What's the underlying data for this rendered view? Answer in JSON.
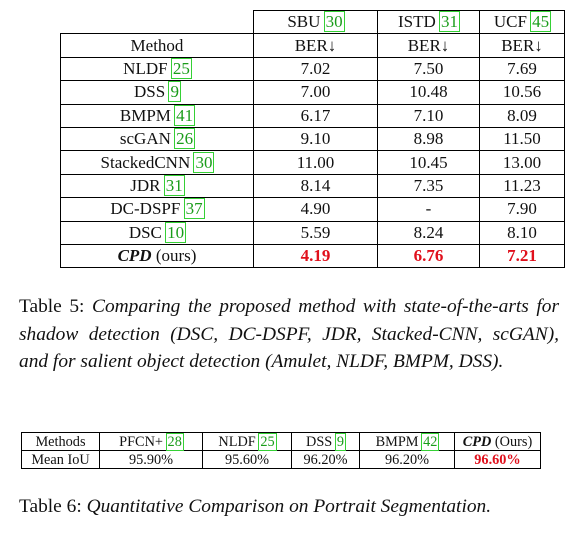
{
  "table5": {
    "datasets": [
      {
        "name": "SBU",
        "cite": "30"
      },
      {
        "name": "ISTD",
        "cite": "31"
      },
      {
        "name": "UCF",
        "cite": "45"
      }
    ],
    "method_header": "Method",
    "metric": "BER↓",
    "rows": [
      {
        "method": "NLDF",
        "cite": "25",
        "values": [
          "7.02",
          "7.50",
          "7.69"
        ]
      },
      {
        "method": "DSS",
        "cite": "9",
        "values": [
          "7.00",
          "10.48",
          "10.56"
        ]
      },
      {
        "method": "BMPM",
        "cite": "41",
        "values": [
          "6.17",
          "7.10",
          "8.09"
        ]
      },
      {
        "method": "scGAN",
        "cite": "26",
        "values": [
          "9.10",
          "8.98",
          "11.50"
        ]
      },
      {
        "method": "StackedCNN",
        "cite": "30",
        "values": [
          "11.00",
          "10.45",
          "13.00"
        ]
      },
      {
        "method": "JDR",
        "cite": "31",
        "values": [
          "8.14",
          "7.35",
          "11.23"
        ]
      },
      {
        "method": "DC-DSPF",
        "cite": "37",
        "values": [
          "4.90",
          "-",
          "7.90"
        ]
      },
      {
        "method": "DSC",
        "cite": "10",
        "values": [
          "5.59",
          "8.24",
          "8.10"
        ]
      }
    ],
    "ours": {
      "method": "CPD",
      "suffix": "(ours)",
      "values": [
        "4.19",
        "6.76",
        "7.21"
      ],
      "highlight_color": "#e0101c"
    },
    "caption_label": "Table 5:",
    "caption_text": "Comparing the proposed method with state-of-the-arts for shadow detection (DSC, DC-DSPF, JDR, Stacked-CNN, scGAN), and for salient object detection (Amulet, NLDF, BMPM, DSS)."
  },
  "table6": {
    "header_label": "Methods",
    "row_label": "Mean IoU",
    "methods": [
      {
        "name": "PFCN+",
        "cite": "28",
        "value": "95.90%"
      },
      {
        "name": "NLDF",
        "cite": "25",
        "value": "95.60%"
      },
      {
        "name": "DSS",
        "cite": "9",
        "value": "96.20%"
      },
      {
        "name": "BMPM",
        "cite": "42",
        "value": "96.20%"
      }
    ],
    "ours": {
      "method": "CPD",
      "suffix": "(Ours)",
      "value": "96.60%"
    },
    "caption_label": "Table 6:",
    "caption_text": "Quantitative Comparison on Portrait Segmentation."
  },
  "colors": {
    "citation": "#1a9c1a",
    "citation_box": "#35d035",
    "best": "#e0101c"
  }
}
